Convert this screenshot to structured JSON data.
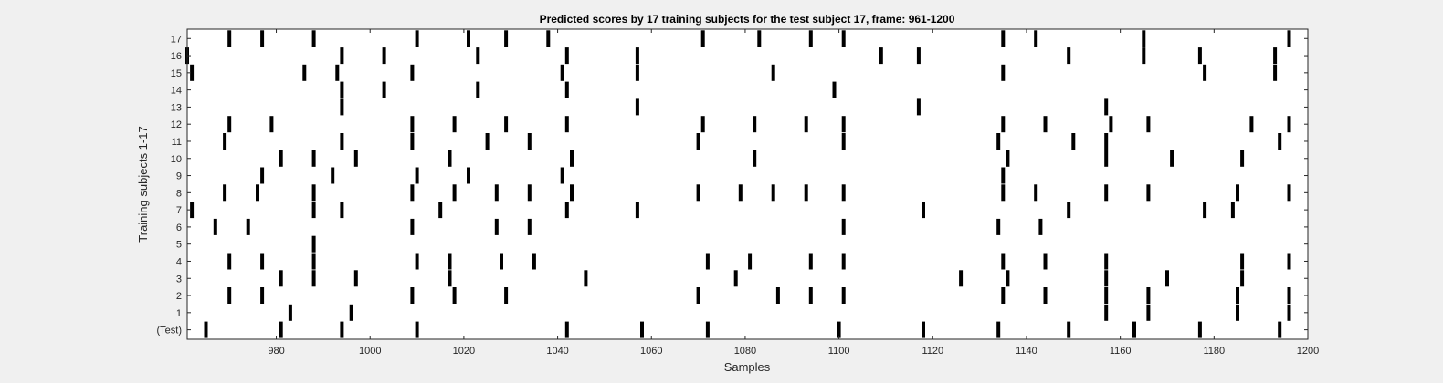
{
  "chart_data": {
    "type": "raster",
    "title": "Predicted scores by 17 training subjects for the test subject 17, frame: 961-1200",
    "xlabel": "Samples",
    "ylabel": "Training subjects 1-17",
    "xlim": [
      961,
      1200
    ],
    "x_ticks": [
      980,
      1000,
      1020,
      1040,
      1060,
      1080,
      1100,
      1120,
      1140,
      1160,
      1180,
      1200
    ],
    "rows": [
      {
        "label": "(Test)",
        "x": [
          965,
          981,
          994,
          1010,
          1042,
          1058,
          1072,
          1100,
          1118,
          1134,
          1149,
          1163,
          1177,
          1194
        ]
      },
      {
        "label": "1",
        "x": [
          983,
          996,
          1157,
          1166,
          1185,
          1196
        ]
      },
      {
        "label": "2",
        "x": [
          970,
          977,
          1009,
          1018,
          1029,
          1070,
          1087,
          1094,
          1101,
          1135,
          1144,
          1157,
          1166,
          1185,
          1196
        ]
      },
      {
        "label": "3",
        "x": [
          981,
          988,
          997,
          1017,
          1046,
          1078,
          1126,
          1136,
          1157,
          1170,
          1186
        ]
      },
      {
        "label": "4",
        "x": [
          970,
          977,
          988,
          1010,
          1017,
          1028,
          1035,
          1072,
          1081,
          1094,
          1101,
          1135,
          1144,
          1157,
          1186,
          1196
        ]
      },
      {
        "label": "5",
        "x": [
          988
        ]
      },
      {
        "label": "6",
        "x": [
          967,
          974,
          1009,
          1027,
          1034,
          1101,
          1134,
          1143
        ]
      },
      {
        "label": "7",
        "x": [
          962,
          988,
          994,
          1015,
          1042,
          1057,
          1118,
          1149,
          1178,
          1184
        ]
      },
      {
        "label": "8",
        "x": [
          969,
          976,
          988,
          1009,
          1018,
          1027,
          1034,
          1043,
          1070,
          1079,
          1086,
          1093,
          1101,
          1135,
          1142,
          1157,
          1166,
          1185,
          1196
        ]
      },
      {
        "label": "9",
        "x": [
          977,
          992,
          1010,
          1021,
          1041,
          1135
        ]
      },
      {
        "label": "10",
        "x": [
          981,
          988,
          997,
          1017,
          1043,
          1082,
          1136,
          1157,
          1171,
          1186
        ]
      },
      {
        "label": "11",
        "x": [
          969,
          994,
          1009,
          1025,
          1034,
          1070,
          1101,
          1134,
          1150,
          1157,
          1194
        ]
      },
      {
        "label": "12",
        "x": [
          970,
          979,
          1009,
          1018,
          1029,
          1042,
          1071,
          1082,
          1093,
          1101,
          1135,
          1144,
          1158,
          1166,
          1188,
          1196
        ]
      },
      {
        "label": "13",
        "x": [
          994,
          1057,
          1117,
          1157
        ]
      },
      {
        "label": "14",
        "x": [
          994,
          1003,
          1023,
          1042,
          1099
        ]
      },
      {
        "label": "15",
        "x": [
          962,
          986,
          993,
          1009,
          1041,
          1057,
          1086,
          1135,
          1178,
          1193
        ]
      },
      {
        "label": "16",
        "x": [
          961,
          994,
          1003,
          1023,
          1042,
          1057,
          1109,
          1117,
          1149,
          1165,
          1177,
          1193
        ]
      },
      {
        "label": "17",
        "x": [
          970,
          977,
          988,
          1010,
          1021,
          1029,
          1038,
          1071,
          1083,
          1094,
          1101,
          1135,
          1142,
          1165,
          1196
        ]
      }
    ]
  }
}
